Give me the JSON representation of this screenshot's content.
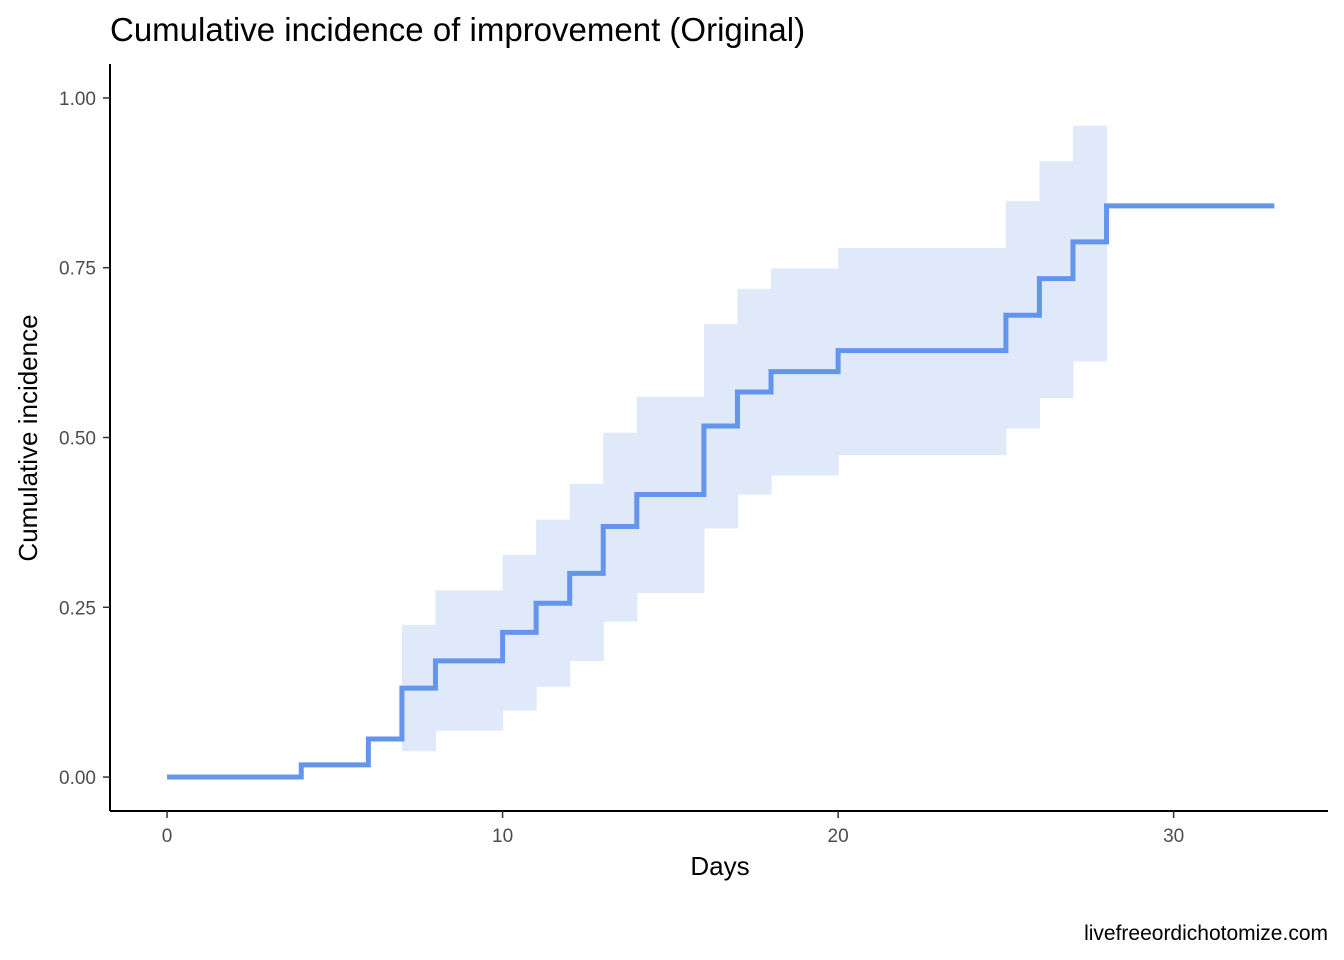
{
  "chart_data": {
    "type": "line",
    "step": true,
    "title": "Cumulative incidence of improvement (Original)",
    "xlabel": "Days",
    "ylabel": "Cumulative incidence",
    "caption": "livefreeordichotomize.com",
    "xlim": [
      -1.7,
      34.6
    ],
    "ylim": [
      -0.05,
      1.05
    ],
    "x_ticks": [
      {
        "value": 0,
        "label": "0"
      },
      {
        "value": 10,
        "label": "10"
      },
      {
        "value": 20,
        "label": "20"
      },
      {
        "value": 30,
        "label": "30"
      }
    ],
    "y_ticks": [
      {
        "value": 0,
        "label": "0.00"
      },
      {
        "value": 0.25,
        "label": "0.25"
      },
      {
        "value": 0.5,
        "label": "0.50"
      },
      {
        "value": 0.75,
        "label": "0.75"
      },
      {
        "value": 1.0,
        "label": "1.00"
      }
    ],
    "grid": false,
    "legend": "none",
    "colors": {
      "line": "#6495ED",
      "ribbon": "#E0E9FA",
      "axis": "#000000"
    },
    "series": [
      {
        "x": [
          0,
          4,
          6,
          7,
          8,
          10,
          11,
          12,
          13,
          14,
          16,
          17,
          18,
          20,
          25,
          26,
          27,
          28,
          33
        ],
        "y": [
          0.0,
          0.018,
          0.056,
          0.131,
          0.171,
          0.213,
          0.256,
          0.3,
          0.369,
          0.416,
          0.517,
          0.567,
          0.597,
          0.628,
          0.68,
          0.734,
          0.788,
          0.841,
          0.841
        ]
      }
    ],
    "confidence_band": [
      {
        "x0": 7,
        "x1": 8,
        "lower": 0.038,
        "upper": 0.224
      },
      {
        "x0": 8,
        "x1": 10,
        "lower": 0.068,
        "upper": 0.275
      },
      {
        "x0": 10,
        "x1": 11,
        "lower": 0.098,
        "upper": 0.327
      },
      {
        "x0": 11,
        "x1": 12,
        "lower": 0.133,
        "upper": 0.379
      },
      {
        "x0": 12,
        "x1": 13,
        "lower": 0.171,
        "upper": 0.432
      },
      {
        "x0": 13,
        "x1": 14,
        "lower": 0.229,
        "upper": 0.507
      },
      {
        "x0": 14,
        "x1": 16,
        "lower": 0.271,
        "upper": 0.56
      },
      {
        "x0": 16,
        "x1": 17,
        "lower": 0.366,
        "upper": 0.667
      },
      {
        "x0": 17,
        "x1": 18,
        "lower": 0.416,
        "upper": 0.719
      },
      {
        "x0": 18,
        "x1": 20,
        "lower": 0.444,
        "upper": 0.749
      },
      {
        "x0": 20,
        "x1": 25,
        "lower": 0.474,
        "upper": 0.779
      },
      {
        "x0": 25,
        "x1": 26,
        "lower": 0.513,
        "upper": 0.848
      },
      {
        "x0": 26,
        "x1": 27,
        "lower": 0.558,
        "upper": 0.907
      },
      {
        "x0": 27,
        "x1": 28,
        "lower": 0.612,
        "upper": 0.959
      }
    ]
  }
}
